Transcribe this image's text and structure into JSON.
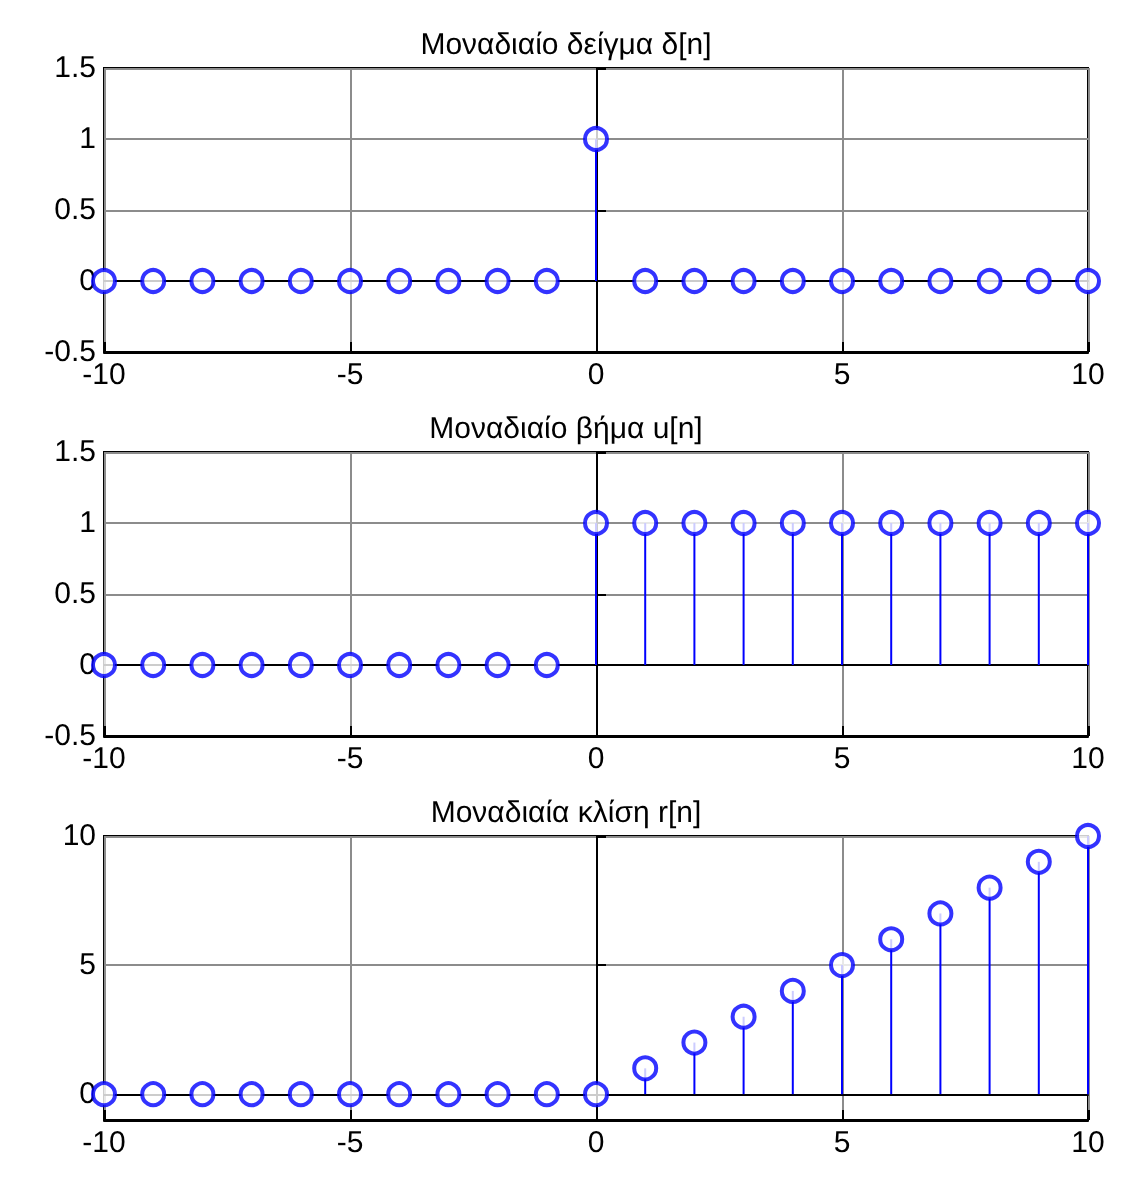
{
  "chart_data": [
    {
      "type": "lollipop",
      "title": "Μοναδιαίο δείγμα δ[n]",
      "x": [
        -10,
        -9,
        -8,
        -7,
        -6,
        -5,
        -4,
        -3,
        -2,
        -1,
        0,
        1,
        2,
        3,
        4,
        5,
        6,
        7,
        8,
        9,
        10
      ],
      "color": "#0000ff",
      "values": [
        0,
        0,
        0,
        0,
        0,
        0,
        0,
        0,
        0,
        0,
        1,
        0,
        0,
        0,
        0,
        0,
        0,
        0,
        0,
        0,
        0
      ],
      "xlim": [
        -10,
        10
      ],
      "xticks": [
        -10,
        -5,
        0,
        5,
        10
      ],
      "ylim": [
        -0.5,
        1.5
      ],
      "yticks": [
        -0.5,
        0,
        0.5,
        1,
        1.5
      ],
      "grid": true,
      "marker": "circle"
    },
    {
      "type": "lollipop",
      "title": "Μοναδιαίο βήμα u[n]",
      "x": [
        -10,
        -9,
        -8,
        -7,
        -6,
        -5,
        -4,
        -3,
        -2,
        -1,
        0,
        1,
        2,
        3,
        4,
        5,
        6,
        7,
        8,
        9,
        10
      ],
      "color": "#0000ff",
      "values": [
        0,
        0,
        0,
        0,
        0,
        0,
        0,
        0,
        0,
        0,
        1,
        1,
        1,
        1,
        1,
        1,
        1,
        1,
        1,
        1,
        1
      ],
      "xlim": [
        -10,
        10
      ],
      "xticks": [
        -10,
        -5,
        0,
        5,
        10
      ],
      "ylim": [
        -0.5,
        1.5
      ],
      "yticks": [
        -0.5,
        0,
        0.5,
        1,
        1.5
      ],
      "grid": true,
      "marker": "circle"
    },
    {
      "type": "lollipop",
      "title": "Μοναδιαία κλίση r[n]",
      "x": [
        -10,
        -9,
        -8,
        -7,
        -6,
        -5,
        -4,
        -3,
        -2,
        -1,
        0,
        1,
        2,
        3,
        4,
        5,
        6,
        7,
        8,
        9,
        10
      ],
      "color": "#0000ff",
      "values": [
        0,
        0,
        0,
        0,
        0,
        0,
        0,
        0,
        0,
        0,
        0,
        1,
        2,
        3,
        4,
        5,
        6,
        7,
        8,
        9,
        10
      ],
      "xlim": [
        -10,
        10
      ],
      "xticks": [
        -10,
        -5,
        0,
        5,
        10
      ],
      "ylim": [
        -1,
        10
      ],
      "yticks": [
        0,
        5,
        10
      ],
      "grid": true,
      "marker": "circle"
    }
  ]
}
